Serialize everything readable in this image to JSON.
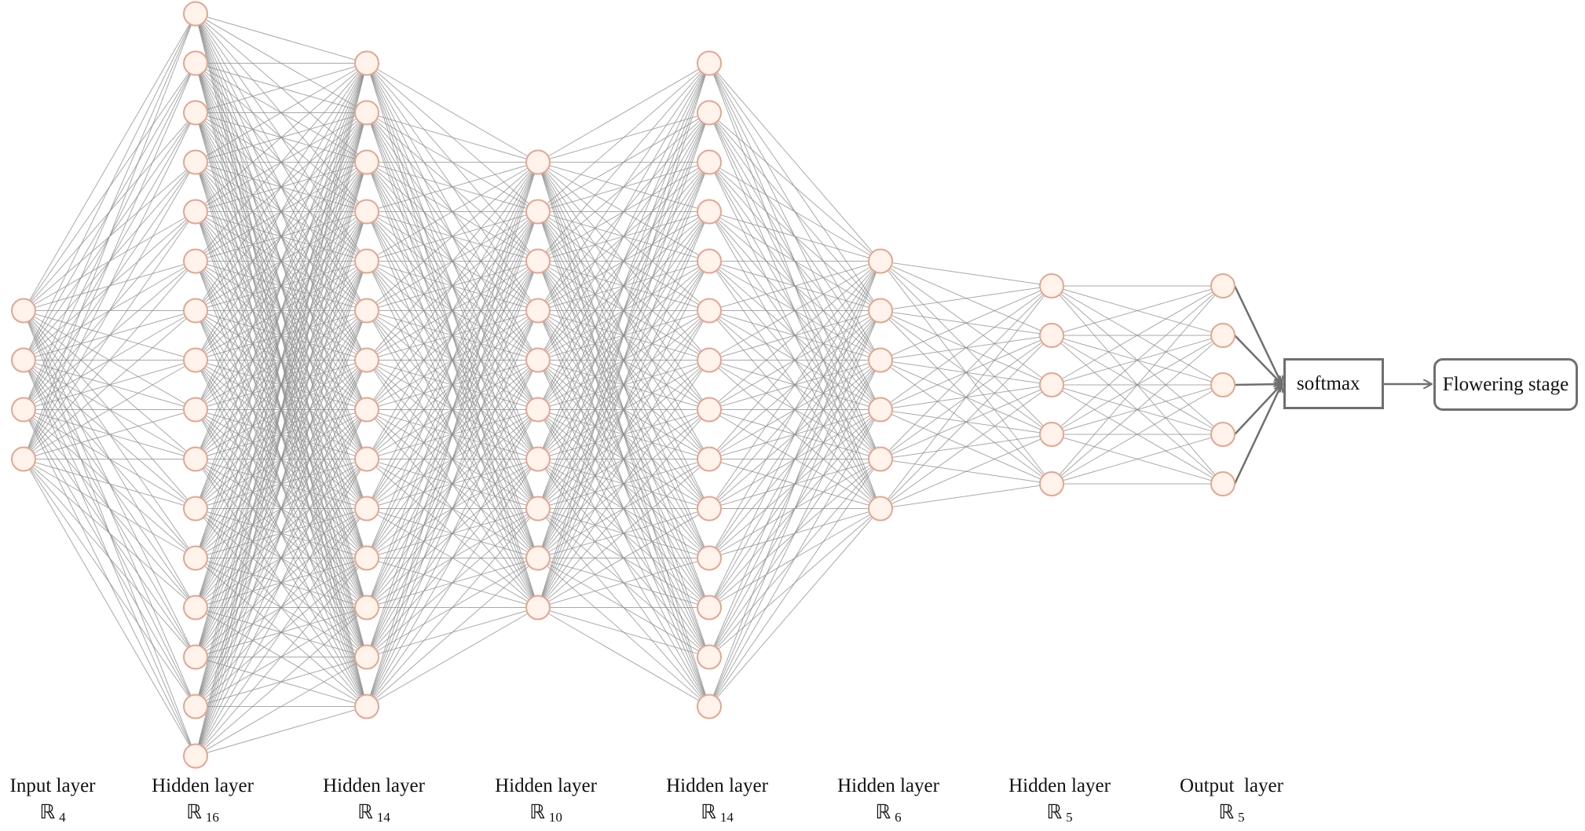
{
  "colors": {
    "node_fill": "#fff3ec",
    "node_stroke": "#e5a590",
    "edge": "#8c8c8c",
    "box_border": "#6f6f6f"
  },
  "layers": [
    {
      "name": "Input layer",
      "symbol": "ℝ",
      "size": "4",
      "nodes": 4
    },
    {
      "name": "Hidden layer",
      "symbol": "ℝ",
      "size": "16",
      "nodes": 16
    },
    {
      "name": "Hidden layer",
      "symbol": "ℝ",
      "size": "14",
      "nodes": 14
    },
    {
      "name": "Hidden layer",
      "symbol": "ℝ",
      "size": "10",
      "nodes": 10
    },
    {
      "name": "Hidden layer",
      "symbol": "ℝ",
      "size": "14",
      "nodes": 14
    },
    {
      "name": "Hidden layer",
      "symbol": "ℝ",
      "size": "6",
      "nodes": 6
    },
    {
      "name": "Hidden layer",
      "symbol": "ℝ",
      "size": "5",
      "nodes": 5
    },
    {
      "name": "Output  layer",
      "symbol": "ℝ",
      "size": "5",
      "nodes": 5
    }
  ],
  "softmax": {
    "label": "softmax"
  },
  "result": {
    "label": "Flowering stage"
  }
}
